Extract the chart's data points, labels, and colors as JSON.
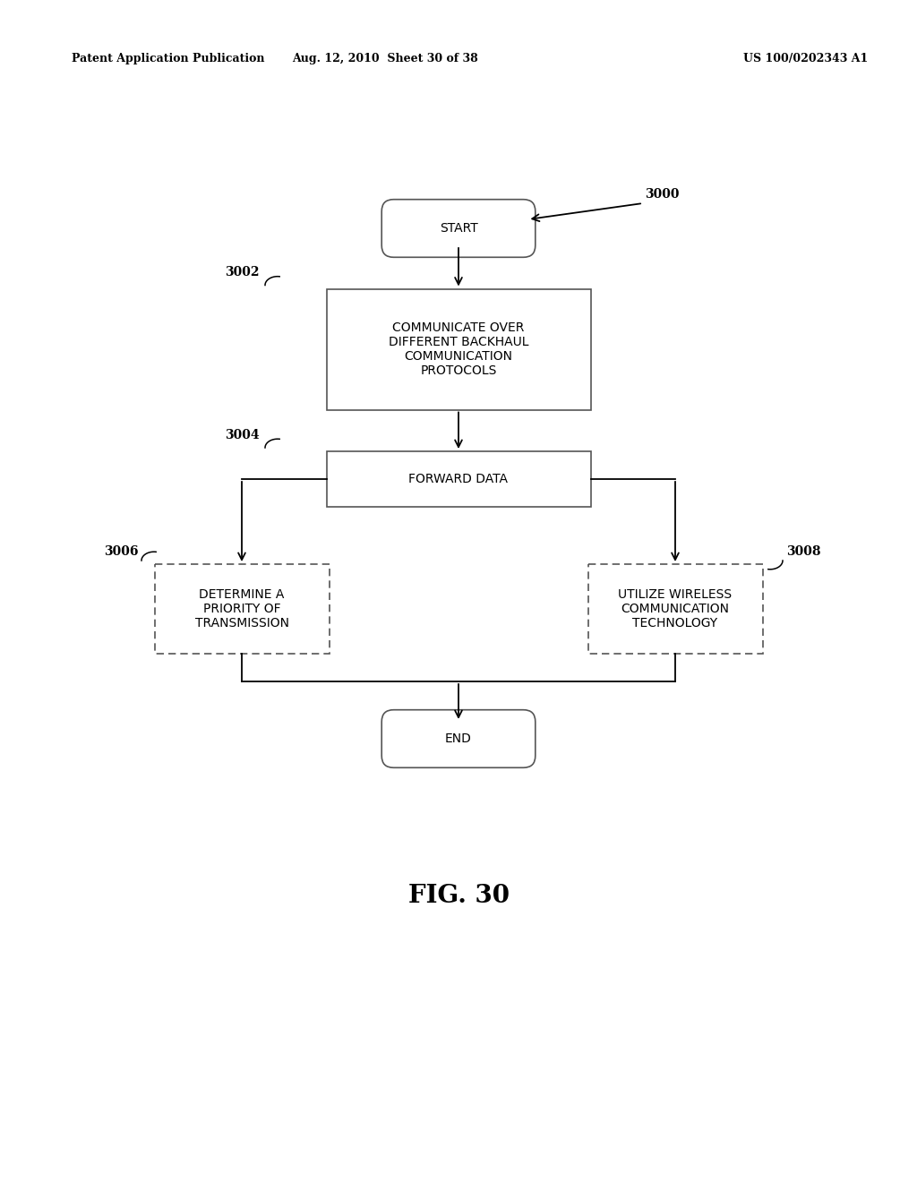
{
  "bg_color": "#ffffff",
  "header_left": "Patent Application Publication",
  "header_mid": "Aug. 12, 2010  Sheet 30 of 38",
  "header_right": "US 100/0202343 A1",
  "fig_label": "FIG. 30",
  "start_label": "START",
  "end_label": "END",
  "box1_label": "COMMUNICATE OVER\nDIFFERENT BACKHAUL\nCOMMUNICATION\nPROTOCOLS",
  "box2_label": "FORWARD DATA",
  "box3_label": "DETERMINE A\nPRIORITY OF\nTRANSMISSION",
  "box4_label": "UTILIZE WIRELESS\nCOMMUNICATION\nTECHNOLOGY",
  "lbl_3000": "3000",
  "lbl_3002": "3002",
  "lbl_3004": "3004",
  "lbl_3006": "3006",
  "lbl_3008": "3008",
  "font_size_node": 10,
  "font_size_label": 10,
  "font_size_header": 9,
  "font_size_fig": 20
}
